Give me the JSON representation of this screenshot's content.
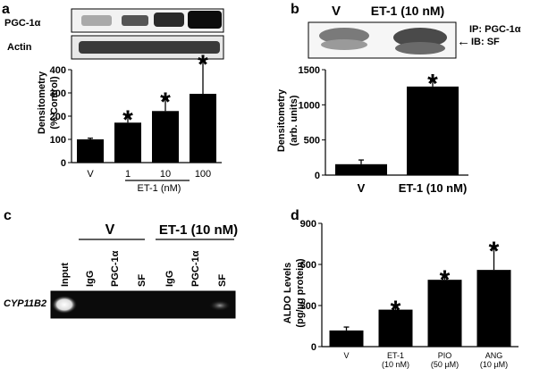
{
  "panels": {
    "a": {
      "letter": "a",
      "blot_labels": [
        "PGC-1α",
        "Actin"
      ],
      "chart_data": {
        "type": "bar",
        "categories": [
          "V",
          "1",
          "10",
          "100"
        ],
        "values": [
          100,
          172,
          222,
          296
        ],
        "errors": [
          5,
          28,
          55,
          142
        ],
        "significant": [
          false,
          true,
          true,
          true
        ],
        "ylabel": "Densitometry\n(% Control)",
        "yticks": [
          0,
          100,
          200,
          300,
          400
        ],
        "ylim": [
          0,
          400
        ],
        "group_label": "ET-1 (nM)",
        "star": "*"
      }
    },
    "b": {
      "letter": "b",
      "header_left": "V",
      "header_right": "ET-1 (10 nM)",
      "ip_label": "IP: PGC-1α",
      "ib_label": "IB: SF",
      "arrow": "←",
      "chart_data": {
        "type": "bar",
        "categories": [
          "V",
          "ET-1 (10 nM)"
        ],
        "values": [
          155,
          1260
        ],
        "errors": [
          60,
          95
        ],
        "significant": [
          false,
          true
        ],
        "ylabel": "Densitometry\n(arb. units)",
        "yticks": [
          0,
          500,
          1000,
          1500
        ],
        "ylim": [
          0,
          1500
        ],
        "star": "*"
      }
    },
    "c": {
      "letter": "c",
      "group_v": "V",
      "group_et1": "ET-1 (10 nM)",
      "lanes": [
        "Input",
        "IgG",
        "PGC-1α",
        "SF",
        "IgG",
        "PGC-1α",
        "SF"
      ],
      "gene": "CYP11B2"
    },
    "d": {
      "letter": "d",
      "chart_data": {
        "type": "bar",
        "categories": [
          "V",
          "ET-1\n(10 nM)",
          "PIO\n(50 µM)",
          "ANG\n(10 µM)"
        ],
        "values": [
          118,
          270,
          488,
          560
        ],
        "errors": [
          25,
          25,
          28,
          165
        ],
        "significant": [
          false,
          true,
          true,
          true
        ],
        "ylabel": "ALDO Levels\n(pg/µg protein)",
        "yticks": [
          0,
          300,
          600,
          900
        ],
        "ylim": [
          0,
          900
        ],
        "star": "*"
      }
    }
  }
}
